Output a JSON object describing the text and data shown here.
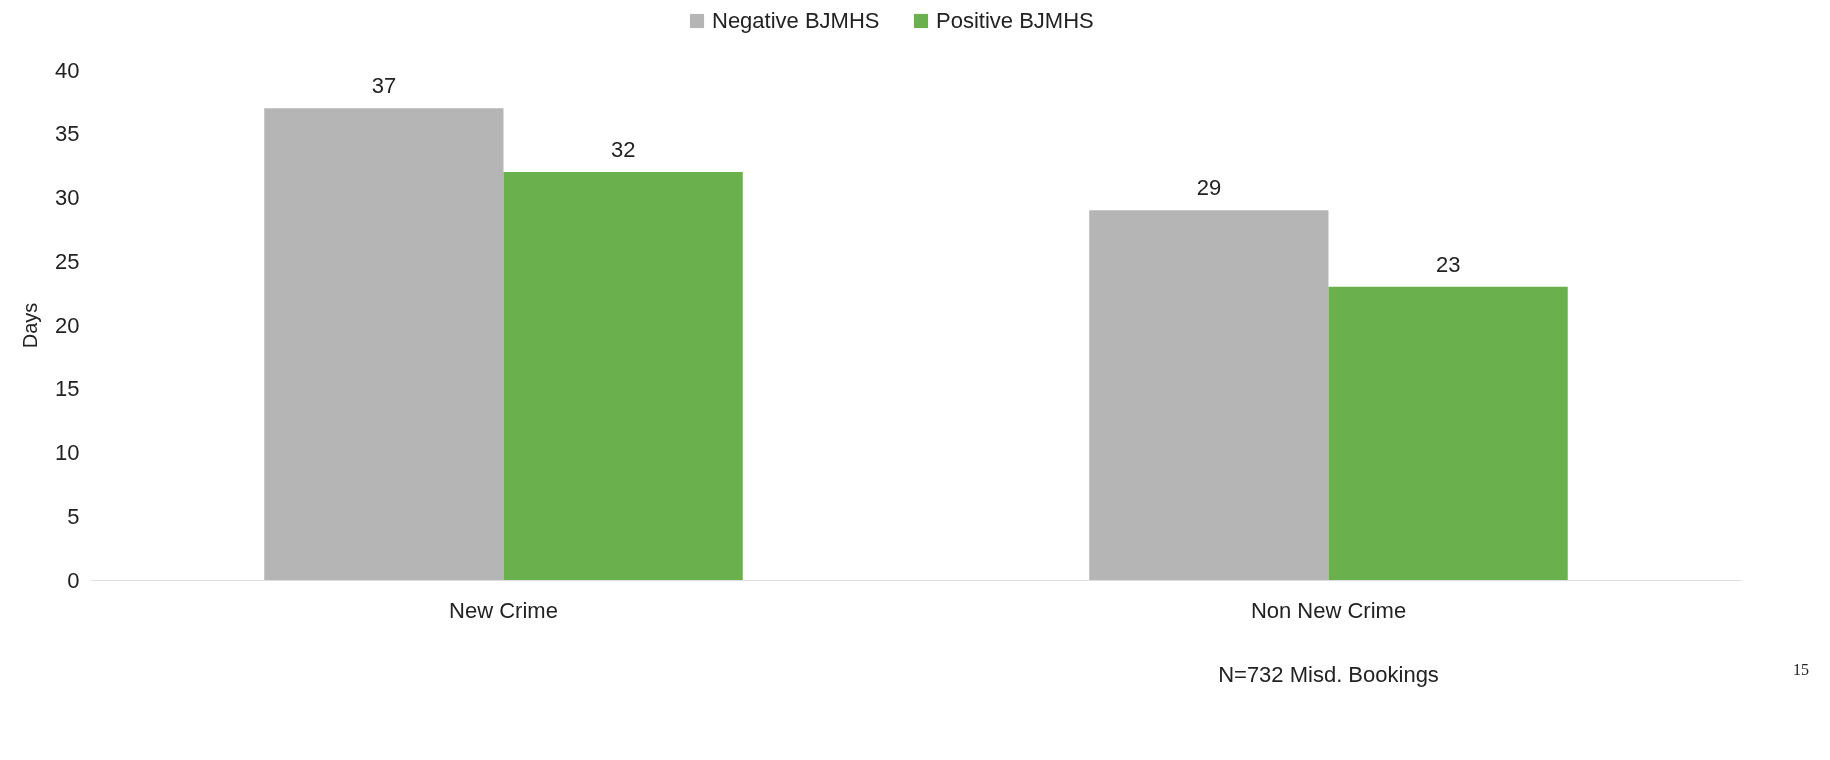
{
  "chart_data": {
    "type": "bar",
    "ylabel": "Days",
    "categories": [
      "New Crime",
      "Non New Crime"
    ],
    "series": [
      {
        "name": "Negative BJMHS",
        "color": "#b5b5b5",
        "values": [
          37,
          29
        ]
      },
      {
        "name": "Positive BJMHS",
        "color": "#6ab04c",
        "values": [
          32,
          23
        ]
      }
    ],
    "ylim": [
      0,
      40
    ],
    "yticks": [
      0,
      5,
      10,
      15,
      20,
      25,
      30,
      35,
      40
    ],
    "grid": false,
    "legend": "top",
    "data_labels": true,
    "annotations": [
      "N=732 Misd. Bookings",
      "15"
    ]
  }
}
